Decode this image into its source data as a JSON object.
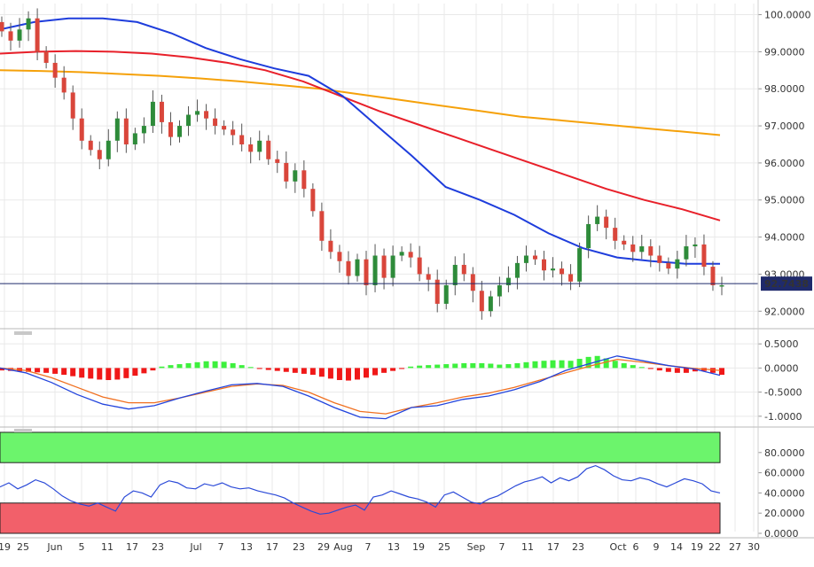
{
  "chart_data": [
    {
      "panel": "price",
      "type": "candlestick",
      "ylim": [
        91.6,
        100.3
      ],
      "y_ticks": [
        "100.0000",
        "99.0000",
        "98.0000",
        "97.0000",
        "96.0000",
        "95.0000",
        "94.0000",
        "93.0000",
        "92.0000"
      ],
      "y_tick_values": [
        100,
        99,
        98,
        97,
        96,
        95,
        94,
        93,
        92
      ],
      "last_price": 92.7438,
      "last_price_label": "92.7438",
      "x_labels": [
        "19",
        "25",
        "Jun",
        "5",
        "11",
        "17",
        "23",
        "Jul",
        "7",
        "13",
        "17",
        "23",
        "29",
        "Aug",
        "7",
        "13",
        "19",
        "25",
        "Sep",
        "7",
        "11",
        "17",
        "23",
        "Oct",
        "6",
        "9",
        "14",
        "19",
        "22",
        "27",
        "30"
      ],
      "closes": [
        99.55,
        99.3,
        99.6,
        99.9,
        99.0,
        98.7,
        98.3,
        97.9,
        97.2,
        96.6,
        96.35,
        96.1,
        96.6,
        97.2,
        96.5,
        96.8,
        97.0,
        97.65,
        97.1,
        96.7,
        97.0,
        97.3,
        97.4,
        97.2,
        97.0,
        96.9,
        96.75,
        96.5,
        96.3,
        96.6,
        96.1,
        96.0,
        95.5,
        95.8,
        95.3,
        94.7,
        93.9,
        93.6,
        93.35,
        92.95,
        93.4,
        92.7,
        93.5,
        92.9,
        93.5,
        93.6,
        93.45,
        93.0,
        92.85,
        92.2,
        92.7,
        93.25,
        93.0,
        92.55,
        92.0,
        92.4,
        92.7,
        92.9,
        93.3,
        93.5,
        93.4,
        93.1,
        93.15,
        93.0,
        92.8,
        93.7,
        94.35,
        94.55,
        94.25,
        93.9,
        93.8,
        93.6,
        93.75,
        93.5,
        93.3,
        93.15,
        93.4,
        93.75,
        93.8,
        93.2,
        92.7,
        92.7
      ],
      "sma_blue": [
        99.6,
        99.8,
        99.9,
        99.9,
        99.8,
        99.5,
        99.1,
        98.8,
        98.55,
        98.35,
        97.8,
        97.0,
        96.2,
        95.35,
        95.0,
        94.6,
        94.1,
        93.7,
        93.45,
        93.35,
        93.28,
        93.28
      ],
      "sma_red": [
        98.95,
        99.0,
        99.02,
        99.0,
        98.95,
        98.85,
        98.7,
        98.5,
        98.2,
        97.8,
        97.4,
        97.05,
        96.7,
        96.35,
        96.0,
        95.65,
        95.3,
        95.0,
        94.75,
        94.45
      ],
      "sma_orange": [
        98.5,
        98.48,
        98.45,
        98.4,
        98.35,
        98.28,
        98.2,
        98.1,
        98.0,
        97.85,
        97.7,
        97.55,
        97.4,
        97.25,
        97.15,
        97.05,
        96.95,
        96.85,
        96.75
      ],
      "colors": {
        "up": "#2e8b3a",
        "down": "#d9463b",
        "blue": "#1e3ddc",
        "red": "#e8202a",
        "orange": "#f5a10a",
        "last_line": "#1f2a6b"
      }
    },
    {
      "panel": "macd",
      "type": "histogram+line",
      "ylim": [
        -1.15,
        0.65
      ],
      "y_ticks": [
        "0.5000",
        "0.0000",
        "-0.5000",
        "-1.0000"
      ],
      "y_tick_values": [
        0.5,
        0.0,
        -0.5,
        -1.0
      ],
      "histogram": [
        -0.05,
        -0.06,
        -0.07,
        -0.08,
        -0.09,
        -0.1,
        -0.12,
        -0.14,
        -0.17,
        -0.2,
        -0.22,
        -0.24,
        -0.25,
        -0.24,
        -0.21,
        -0.16,
        -0.11,
        -0.05,
        0.03,
        0.06,
        0.08,
        0.1,
        0.12,
        0.14,
        0.14,
        0.13,
        0.1,
        0.06,
        0.02,
        -0.02,
        -0.04,
        -0.06,
        -0.08,
        -0.1,
        -0.12,
        -0.14,
        -0.18,
        -0.22,
        -0.25,
        -0.26,
        -0.24,
        -0.2,
        -0.15,
        -0.1,
        -0.06,
        -0.02,
        0.03,
        0.05,
        0.06,
        0.07,
        0.08,
        0.09,
        0.1,
        0.1,
        0.1,
        0.09,
        0.07,
        0.08,
        0.1,
        0.12,
        0.14,
        0.15,
        0.16,
        0.16,
        0.15,
        0.19,
        0.23,
        0.25,
        0.2,
        0.15,
        0.1,
        0.06,
        0.02,
        -0.02,
        -0.05,
        -0.08,
        -0.1,
        -0.1,
        -0.07,
        -0.06,
        -0.1,
        -0.14
      ],
      "macd_line": [
        0.0,
        -0.1,
        -0.3,
        -0.55,
        -0.75,
        -0.85,
        -0.78,
        -0.62,
        -0.48,
        -0.35,
        -0.32,
        -0.38,
        -0.58,
        -0.82,
        -1.02,
        -1.05,
        -0.82,
        -0.78,
        -0.65,
        -0.58,
        -0.45,
        -0.28,
        -0.05,
        0.1,
        0.25,
        0.15,
        0.05,
        -0.02,
        -0.15
      ],
      "signal_line": [
        0.0,
        -0.05,
        -0.2,
        -0.4,
        -0.6,
        -0.72,
        -0.72,
        -0.62,
        -0.5,
        -0.38,
        -0.33,
        -0.36,
        -0.5,
        -0.72,
        -0.9,
        -0.95,
        -0.82,
        -0.72,
        -0.6,
        -0.52,
        -0.4,
        -0.25,
        -0.1,
        0.05,
        0.18,
        0.12,
        0.05,
        -0.01,
        -0.05
      ],
      "colors": {
        "up": "#3df03d",
        "down": "#f01818",
        "macd": "#2244dd",
        "signal": "#f07020"
      }
    },
    {
      "panel": "rsi",
      "type": "line",
      "ylim": [
        0,
        100
      ],
      "y_ticks": [
        "80.0000",
        "60.0000",
        "40.0000",
        "20.0000",
        "0.0000"
      ],
      "y_tick_values": [
        80,
        60,
        40,
        20,
        0
      ],
      "overbought_zone": [
        70,
        100
      ],
      "oversold_zone": [
        0,
        30
      ],
      "rsi": [
        46,
        50,
        44,
        48,
        53,
        50,
        44,
        37,
        32,
        29,
        27,
        30,
        26,
        22,
        36,
        42,
        40,
        36,
        48,
        52,
        50,
        45,
        44,
        49,
        47,
        50,
        46,
        44,
        45,
        42,
        40,
        38,
        35,
        30,
        26,
        22,
        19,
        20,
        23,
        26,
        28,
        23,
        36,
        38,
        42,
        39,
        36,
        34,
        31,
        26,
        38,
        41,
        36,
        31,
        29,
        34,
        37,
        42,
        47,
        51,
        53,
        56,
        50,
        55,
        52,
        56,
        64,
        67,
        63,
        57,
        53,
        52,
        55,
        53,
        49,
        46,
        50,
        54,
        52,
        49,
        42,
        40
      ],
      "colors": {
        "line": "#2b4ad8",
        "overbought": "#6cf46c",
        "oversold": "#f2606a"
      }
    }
  ]
}
